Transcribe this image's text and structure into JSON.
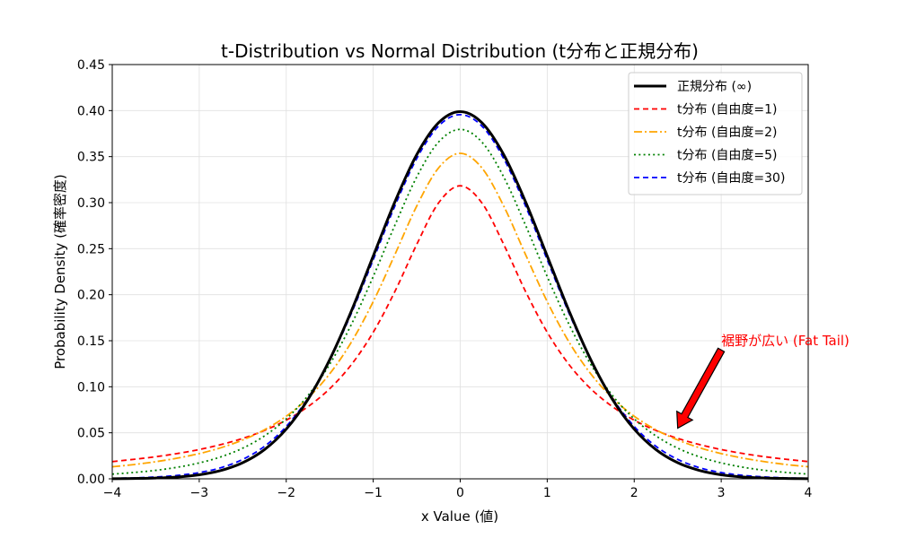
{
  "chart_data": {
    "type": "line",
    "title": "t-Distribution vs Normal Distribution (t分布と正規分布)",
    "xlabel": "x Value (値)",
    "ylabel": "Probability Density (確率密度)",
    "xlim": [
      -4,
      4
    ],
    "ylim": [
      0,
      0.45
    ],
    "xticks": [
      -4,
      -3,
      -2,
      -1,
      0,
      1,
      2,
      3,
      4
    ],
    "xtick_labels": [
      "−4",
      "−3",
      "−2",
      "−1",
      "0",
      "1",
      "2",
      "3",
      "4"
    ],
    "yticks": [
      0,
      0.05,
      0.1,
      0.15,
      0.2,
      0.25,
      0.3,
      0.35,
      0.4,
      0.45
    ],
    "ytick_labels": [
      "0.00",
      "0.05",
      "0.10",
      "0.15",
      "0.20",
      "0.25",
      "0.30",
      "0.35",
      "0.40",
      "0.45"
    ],
    "grid": true,
    "legend_position": "top-right",
    "x": [
      -4,
      -3.75,
      -3.5,
      -3.25,
      -3,
      -2.75,
      -2.5,
      -2.25,
      -2,
      -1.75,
      -1.5,
      -1.25,
      -1,
      -0.75,
      -0.5,
      -0.25,
      0,
      0.25,
      0.5,
      0.75,
      1,
      1.25,
      1.5,
      1.75,
      2,
      2.25,
      2.5,
      2.75,
      3,
      3.25,
      3.5,
      3.75,
      4
    ],
    "series": [
      {
        "name": "t分布 (自由度=1)",
        "color": "#ff0000",
        "style": "dashed",
        "values": [
          0.0187,
          0.0212,
          0.024,
          0.0275,
          0.0318,
          0.0372,
          0.0439,
          0.0525,
          0.0637,
          0.0784,
          0.0979,
          0.1242,
          0.1592,
          0.2037,
          0.2546,
          0.2996,
          0.3183,
          0.2996,
          0.2546,
          0.2037,
          0.1592,
          0.1242,
          0.0979,
          0.0784,
          0.0637,
          0.0525,
          0.0439,
          0.0372,
          0.0318,
          0.0275,
          0.024,
          0.0212,
          0.0187
        ]
      },
      {
        "name": "t分布 (自由度=2)",
        "color": "#ffa500",
        "style": "dashdot",
        "values": [
          0.0131,
          0.0155,
          0.0186,
          0.0225,
          0.0274,
          0.0338,
          0.0422,
          0.0533,
          0.068,
          0.0878,
          0.1141,
          0.1487,
          0.1925,
          0.2438,
          0.2963,
          0.3376,
          0.3536,
          0.3376,
          0.2963,
          0.2438,
          0.1925,
          0.1487,
          0.1141,
          0.0878,
          0.068,
          0.0533,
          0.0422,
          0.0338,
          0.0274,
          0.0225,
          0.0186,
          0.0155,
          0.0131
        ]
      },
      {
        "name": "t分布 (自由度=5)",
        "color": "#008000",
        "style": "dotted",
        "values": [
          0.0051,
          0.0069,
          0.0092,
          0.0126,
          0.0173,
          0.0239,
          0.0333,
          0.0466,
          0.0651,
          0.0905,
          0.1245,
          0.1679,
          0.2197,
          0.2757,
          0.3279,
          0.3657,
          0.3796,
          0.3657,
          0.3279,
          0.2757,
          0.2197,
          0.1679,
          0.1245,
          0.0905,
          0.0651,
          0.0466,
          0.0333,
          0.0239,
          0.0173,
          0.0126,
          0.0092,
          0.0069,
          0.0051
        ]
      },
      {
        "name": "t分布 (自由度=30)",
        "color": "#0000ff",
        "style": "dashed",
        "values": [
          0.0005,
          0.001,
          0.002,
          0.0037,
          0.0068,
          0.0121,
          0.0211,
          0.0353,
          0.0569,
          0.0877,
          0.129,
          0.1801,
          0.238,
          0.2966,
          0.3479,
          0.3831,
          0.3956,
          0.3831,
          0.3479,
          0.2966,
          0.238,
          0.1801,
          0.129,
          0.0877,
          0.0569,
          0.0353,
          0.0211,
          0.0121,
          0.0068,
          0.0037,
          0.002,
          0.001,
          0.0005
        ]
      },
      {
        "name": "正規分布 (∞)",
        "color": "#000000",
        "style": "solid",
        "values": [
          0.0001,
          0.0004,
          0.0009,
          0.002,
          0.0044,
          0.0091,
          0.0175,
          0.0317,
          0.054,
          0.0863,
          0.1295,
          0.1826,
          0.242,
          0.3011,
          0.3521,
          0.3867,
          0.3989,
          0.3867,
          0.3521,
          0.3011,
          0.242,
          0.1826,
          0.1295,
          0.0863,
          0.054,
          0.0317,
          0.0175,
          0.0091,
          0.0044,
          0.002,
          0.0009,
          0.0004,
          0.0001
        ]
      }
    ],
    "legend_order": [
      4,
      0,
      1,
      2,
      3
    ],
    "annotation": {
      "text": "裾野が広い (Fat Tail)",
      "color": "#ff0000",
      "text_at": [
        3.0,
        0.15
      ],
      "arrow_from": [
        3.0,
        0.14
      ],
      "arrow_to": [
        2.5,
        0.055
      ]
    }
  }
}
